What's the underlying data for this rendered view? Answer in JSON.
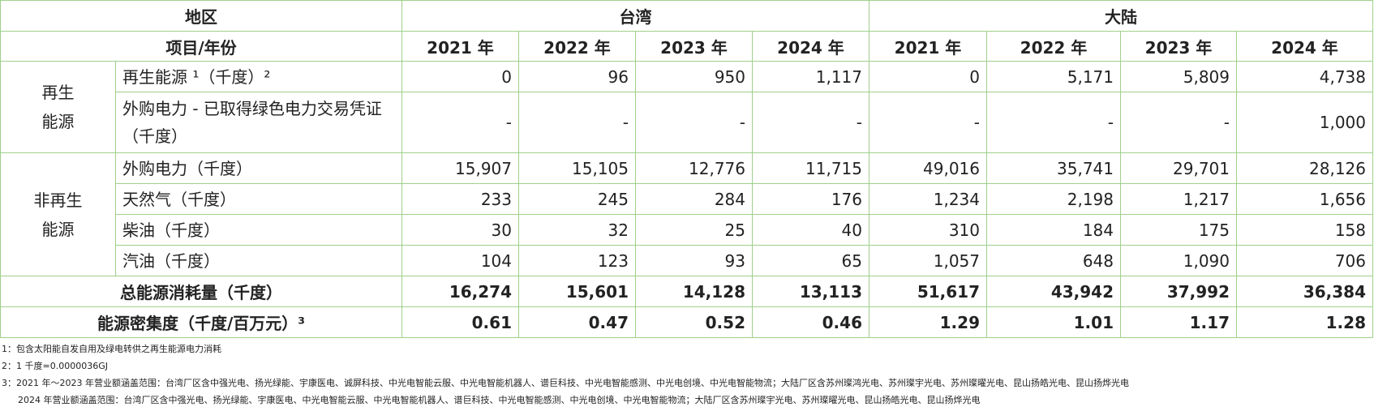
{
  "header": {
    "region_label": "地区",
    "region_taiwan": "台湾",
    "region_mainland": "大陆",
    "item_year_label": "项目/年份",
    "years": [
      "2021 年",
      "2022 年",
      "2023 年",
      "2024 年"
    ]
  },
  "categories": {
    "renewable": "再生\n能源",
    "nonrenewable": "非再生\n能源"
  },
  "rows": [
    {
      "label": "再生能源 ¹（千度）²",
      "taiwan": [
        "0",
        "96",
        "950",
        "1,117"
      ],
      "mainland": [
        "0",
        "5,171",
        "5,809",
        "4,738"
      ]
    },
    {
      "label": "外购电力 - 已取得绿色电力交易凭证（千度）",
      "taiwan": [
        "-",
        "-",
        "-",
        "-"
      ],
      "mainland": [
        "-",
        "-",
        "-",
        "1,000"
      ]
    },
    {
      "label": "外购电力（千度）",
      "taiwan": [
        "15,907",
        "15,105",
        "12,776",
        "11,715"
      ],
      "mainland": [
        "49,016",
        "35,741",
        "29,701",
        "28,126"
      ]
    },
    {
      "label": "天然气（千度）",
      "taiwan": [
        "233",
        "245",
        "284",
        "176"
      ],
      "mainland": [
        "1,234",
        "2,198",
        "1,217",
        "1,656"
      ]
    },
    {
      "label": "柴油（千度）",
      "taiwan": [
        "30",
        "32",
        "25",
        "40"
      ],
      "mainland": [
        "310",
        "184",
        "175",
        "158"
      ]
    },
    {
      "label": "汽油（千度）",
      "taiwan": [
        "104",
        "123",
        "93",
        "65"
      ],
      "mainland": [
        "1,057",
        "648",
        "1,090",
        "706"
      ]
    }
  ],
  "totals": [
    {
      "label": "总能源消耗量（千度）",
      "taiwan": [
        "16,274",
        "15,601",
        "14,128",
        "13,113"
      ],
      "mainland": [
        "51,617",
        "43,942",
        "37,992",
        "36,384"
      ]
    },
    {
      "label": "能源密集度（千度/百万元）³",
      "taiwan": [
        "0.61",
        "0.47",
        "0.52",
        "0.46"
      ],
      "mainland": [
        "1.29",
        "1.01",
        "1.17",
        "1.28"
      ]
    }
  ],
  "notes": [
    "1：包含太阳能自发自用及绿电转供之再生能源电力消耗",
    "2：1 千度=0.0000036GJ",
    "3：2021 年～2023 年营业额涵盖范围：台湾厂区含中强光电、扬光绿能、宇康医电、诚屏科技、中光电智能云服、中光电智能机器人、谱巨科技、中光电智能感测、中光电创境、中光电智能物流；大陆厂区含苏州璨鸿光电、苏州璨宇光电、苏州璨曜光电、昆山扬皓光电、昆山扬烨光电",
    "2024 年营业额涵盖范围：台湾厂区含中强光电、扬光绿能、宇康医电、中光电智能云服、中光电智能机器人、谱巨科技、中光电智能感测、中光电创境、中光电智能物流；大陆厂区含苏州璨宇光电、苏州璨曜光电、昆山扬皓光电、昆山扬烨光电"
  ]
}
